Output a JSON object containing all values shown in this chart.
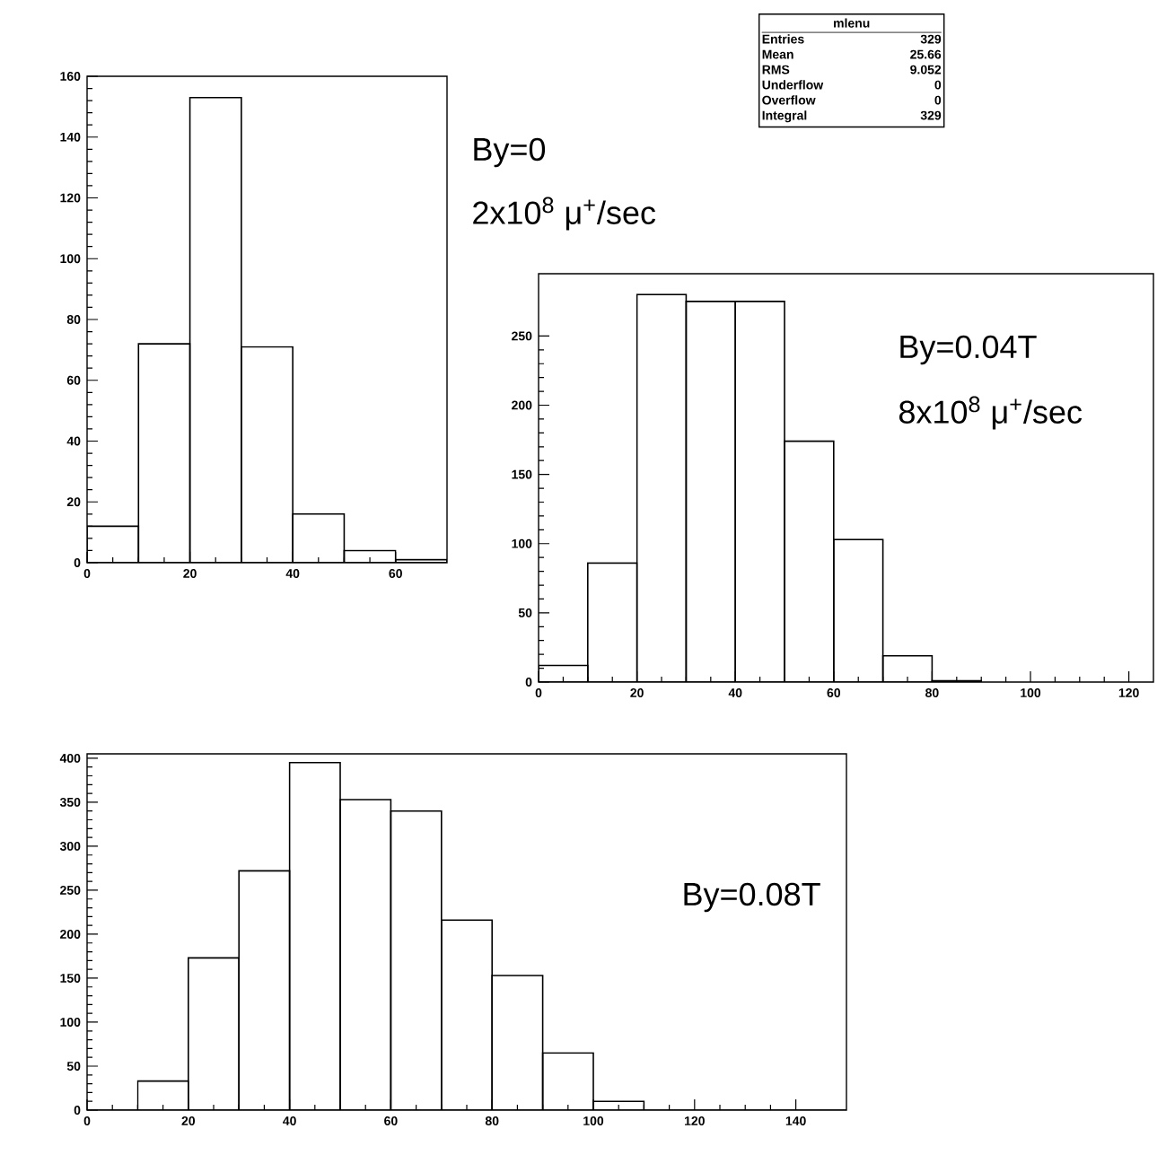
{
  "chart_data": [
    {
      "type": "histogram",
      "bins": [
        0,
        10,
        20,
        30,
        40,
        50,
        60,
        70
      ],
      "values": [
        12,
        72,
        153,
        71,
        16,
        4,
        1
      ],
      "color": "#000000",
      "xlim": [
        0,
        70
      ],
      "ylim": [
        0,
        160
      ],
      "xticks": [
        0,
        20,
        40,
        60
      ],
      "yticks": [
        0,
        20,
        40,
        60,
        80,
        100,
        120,
        140,
        160
      ],
      "annotations": [
        "By=0",
        "2x10$^{8}$ μ$^{+}$/sec",
        "mlenu",
        "Entries",
        "329",
        "Mean",
        "25.66",
        "RMS",
        "9.052",
        "Underflow",
        "0",
        "Overflow",
        "0",
        "Integral",
        "329"
      ]
    },
    {
      "type": "histogram",
      "bins": [
        0,
        10,
        20,
        30,
        40,
        50,
        60,
        70,
        80,
        90
      ],
      "values": [
        12,
        86,
        280,
        275,
        275,
        174,
        103,
        19,
        1
      ],
      "color": "#000000",
      "xlim": [
        0,
        125
      ],
      "ylim": [
        0,
        295
      ],
      "xticks": [
        0,
        20,
        40,
        60,
        80,
        100,
        120
      ],
      "yticks": [
        0,
        50,
        100,
        150,
        200,
        250
      ],
      "annotations": [
        "By=0.04T",
        "8x10$^{8}$ μ$^{+}$/sec"
      ]
    },
    {
      "type": "histogram",
      "bins": [
        0,
        10,
        20,
        30,
        40,
        50,
        60,
        70,
        80,
        90,
        100,
        110,
        120,
        130,
        140,
        150
      ],
      "values": [
        0,
        33,
        173,
        272,
        395,
        353,
        340,
        216,
        153,
        65,
        10,
        0,
        0,
        0,
        0
      ],
      "color": "#000000",
      "xlim": [
        0,
        150
      ],
      "ylim": [
        0,
        405
      ],
      "xticks": [
        0,
        20,
        40,
        60,
        80,
        100,
        120,
        140
      ],
      "yticks": [
        0,
        50,
        100,
        150,
        200,
        250,
        300,
        350,
        400
      ],
      "annotations": [
        "By=0.08T"
      ]
    }
  ]
}
